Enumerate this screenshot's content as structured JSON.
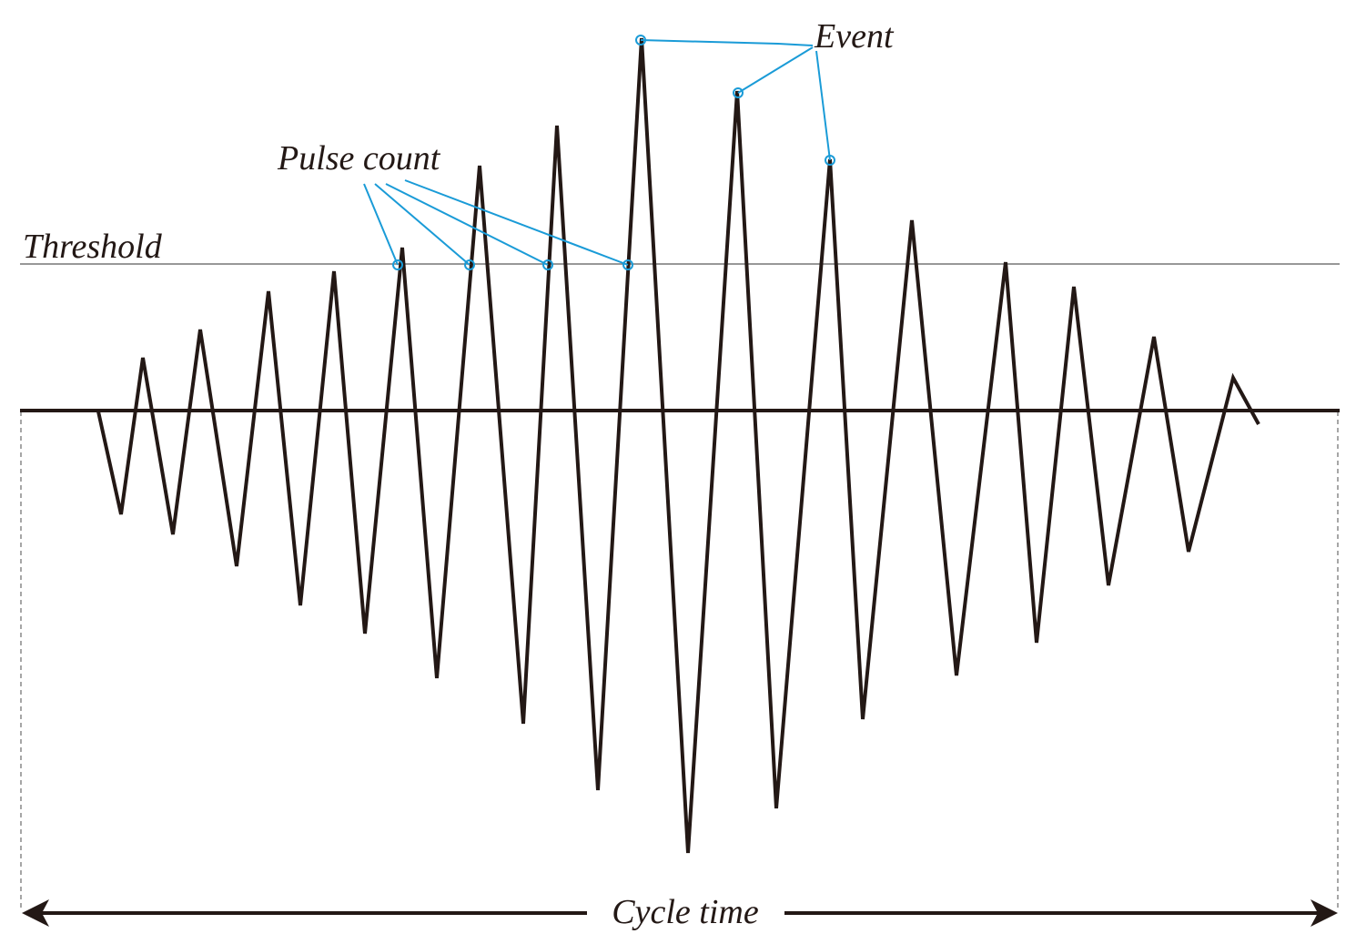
{
  "labels": {
    "event": "Event",
    "pulse_count": "Pulse count",
    "threshold": "Threshold",
    "cycle_time": "Cycle time"
  }
}
